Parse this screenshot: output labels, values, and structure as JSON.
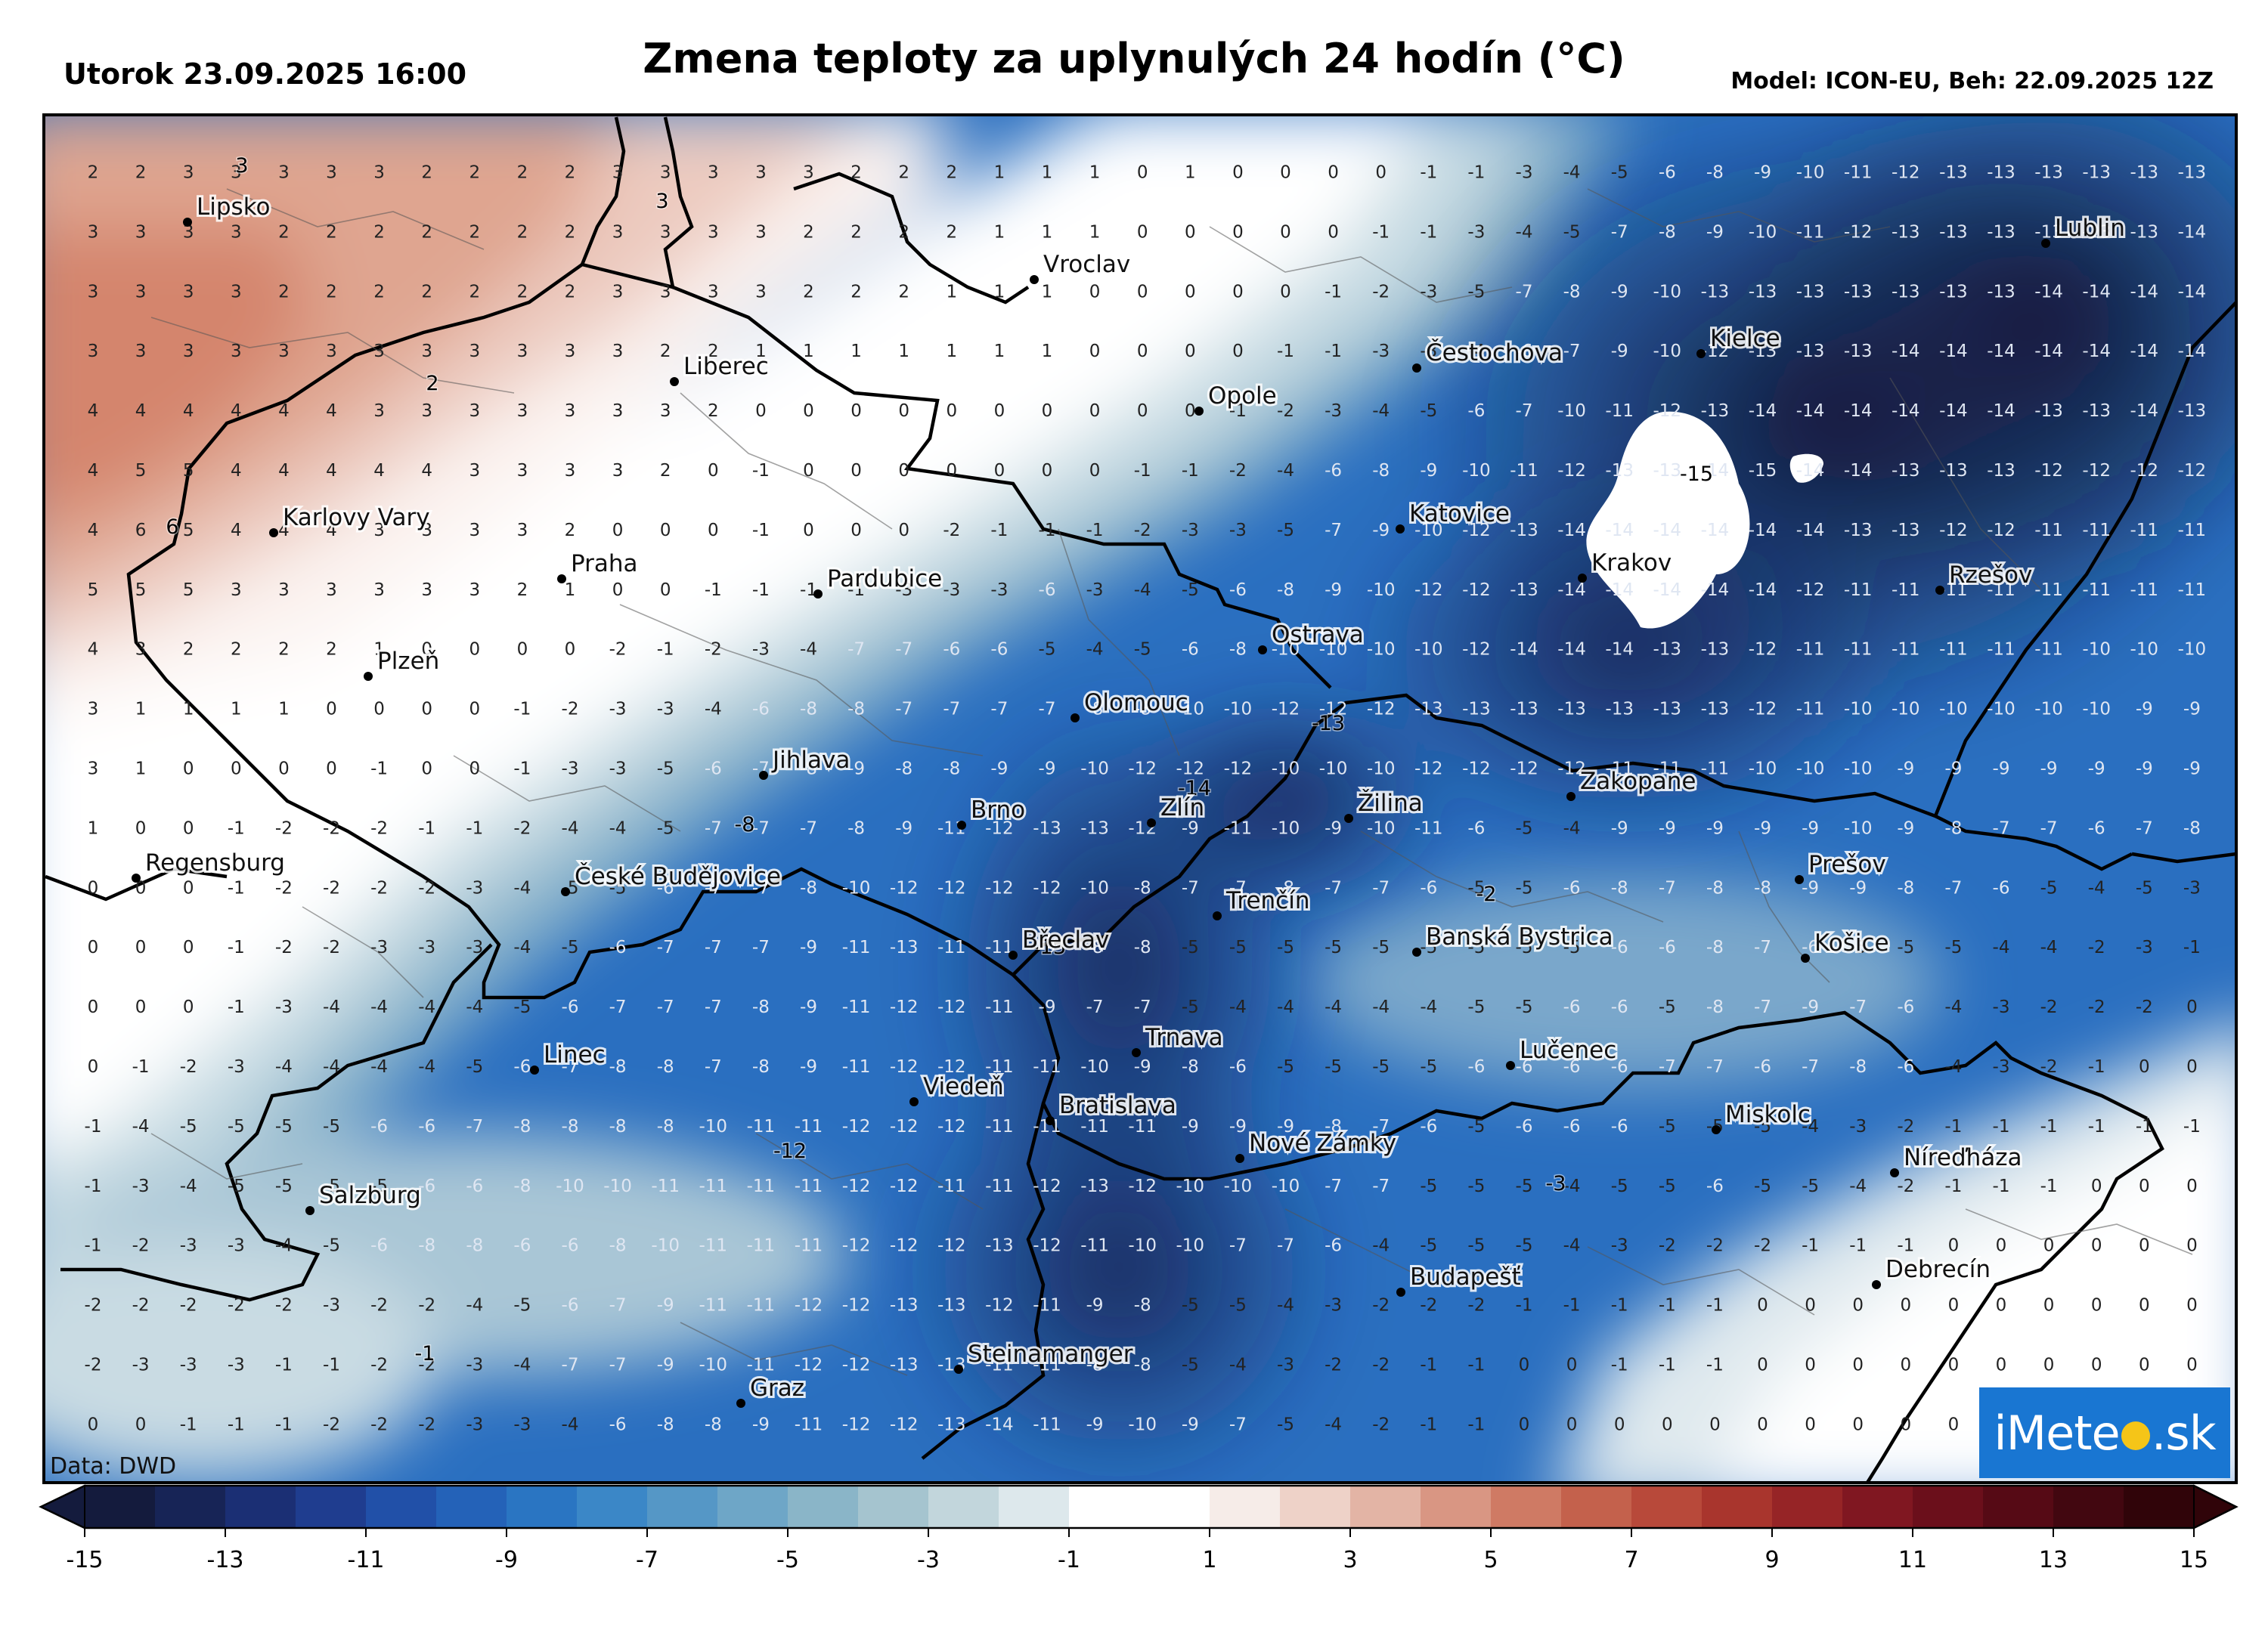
{
  "header": {
    "date_label": "Utorok 23.09.2025 16:00",
    "title": "Zmena teploty za uplynulých 24 hodín (°C)",
    "model_label": "Model: ICON-EU, Beh: 22.09.2025 12Z"
  },
  "footer": {
    "data_source": "Data: DWD"
  },
  "logo": {
    "left": "iMete",
    "right": ".sk"
  },
  "colorbar": {
    "ticks": [
      "-15",
      "-13",
      "-11",
      "-9",
      "-7",
      "-5",
      "-3",
      "-1",
      "1",
      "3",
      "5",
      "7",
      "9",
      "11",
      "13",
      "15"
    ],
    "colors": [
      "#141b3d",
      "#172456",
      "#1b2f74",
      "#1f3d8f",
      "#2150a8",
      "#2462b8",
      "#2a75c2",
      "#3b87c7",
      "#5597c6",
      "#6ea6c7",
      "#8ab5c8",
      "#a5c4cf",
      "#c2d6dc",
      "#dde8ec",
      "#ffffff",
      "#ffffff",
      "#f6ece8",
      "#eed2c8",
      "#e3b4a5",
      "#d99683",
      "#cf7a64",
      "#c4614c",
      "#b8493a",
      "#a9352d",
      "#962426",
      "#801721",
      "#6b0f1b",
      "#560a15",
      "#420710",
      "#300409"
    ]
  },
  "cities": [
    {
      "name": "Lipsko"
    },
    {
      "name": "Vroclav"
    },
    {
      "name": "Lublin"
    },
    {
      "name": "Liberec"
    },
    {
      "name": "Čestochova"
    },
    {
      "name": "Kielce"
    },
    {
      "name": "Opole"
    },
    {
      "name": "Karlovy Vary"
    },
    {
      "name": "Praha"
    },
    {
      "name": "Katovice"
    },
    {
      "name": "Krakov"
    },
    {
      "name": "Rzešov"
    },
    {
      "name": "Pardubice"
    },
    {
      "name": "Ostrava"
    },
    {
      "name": "Plzeň"
    },
    {
      "name": "Olomouc"
    },
    {
      "name": "Jihlava"
    },
    {
      "name": "Zlín"
    },
    {
      "name": "Žilina"
    },
    {
      "name": "Zakopane"
    },
    {
      "name": "Brno"
    },
    {
      "name": "Regensburg"
    },
    {
      "name": "České Budějovice"
    },
    {
      "name": "Prešov"
    },
    {
      "name": "Trenčín"
    },
    {
      "name": "Břeclav"
    },
    {
      "name": "Banská Bystrica"
    },
    {
      "name": "Košice"
    },
    {
      "name": "Trnava"
    },
    {
      "name": "Linec"
    },
    {
      "name": "Lučenec"
    },
    {
      "name": "Viedeň"
    },
    {
      "name": "Bratislava"
    },
    {
      "name": "Miskolc"
    },
    {
      "name": "Nové Zámky"
    },
    {
      "name": "Salzburg"
    },
    {
      "name": "Níreďháza"
    },
    {
      "name": "Debrecín"
    },
    {
      "name": "Budapešť"
    },
    {
      "name": "Steinamanger"
    },
    {
      "name": "Graz"
    }
  ],
  "contour_labels": [
    "3",
    "3",
    "2",
    "6",
    "-15",
    "-13",
    "-14",
    "-8",
    "-2",
    "-13",
    "-12",
    "-3",
    "-1"
  ],
  "grid_values": [
    [
      2,
      2,
      3,
      3,
      3,
      3,
      3,
      2,
      2,
      2,
      2,
      3,
      3,
      3,
      3,
      3,
      2,
      2,
      2,
      1,
      1,
      1,
      0,
      1,
      0,
      0,
      0,
      0,
      -1,
      -1,
      -3,
      -4,
      -5,
      -6,
      -8,
      -9,
      -10,
      -11,
      -12,
      -13,
      -13,
      -13,
      -13,
      -13,
      -13
    ],
    [
      3,
      3,
      3,
      3,
      2,
      2,
      2,
      2,
      2,
      2,
      2,
      3,
      3,
      3,
      3,
      2,
      2,
      2,
      2,
      1,
      1,
      1,
      0,
      0,
      0,
      0,
      0,
      -1,
      -1,
      -3,
      -4,
      -5,
      -7,
      -8,
      -9,
      -10,
      -11,
      -12,
      -13,
      -13,
      -13,
      -13,
      -13,
      -13,
      -14
    ],
    [
      3,
      3,
      3,
      3,
      2,
      2,
      2,
      2,
      2,
      2,
      2,
      3,
      3,
      3,
      3,
      2,
      2,
      2,
      1,
      1,
      1,
      0,
      0,
      0,
      0,
      0,
      -1,
      -2,
      -3,
      -5,
      -7,
      -8,
      -9,
      -10,
      -13,
      -13,
      -13,
      -13,
      -13,
      -13,
      -13,
      -14,
      -14,
      -14,
      -14
    ],
    [
      3,
      3,
      3,
      3,
      3,
      3,
      3,
      3,
      3,
      3,
      3,
      3,
      2,
      2,
      1,
      1,
      1,
      1,
      1,
      1,
      1,
      0,
      0,
      0,
      0,
      -1,
      -1,
      -3,
      -3,
      -4,
      -6,
      -7,
      -9,
      -10,
      -12,
      -13,
      -13,
      -13,
      -14,
      -14,
      -14,
      -14,
      -14,
      -14,
      -14
    ],
    [
      4,
      4,
      4,
      4,
      4,
      4,
      3,
      3,
      3,
      3,
      3,
      3,
      3,
      2,
      0,
      0,
      0,
      0,
      0,
      0,
      0,
      0,
      0,
      0,
      -1,
      -2,
      -3,
      -4,
      -5,
      -6,
      -7,
      -10,
      -11,
      -12,
      -13,
      -14,
      -14,
      -14,
      -14,
      -14,
      -14,
      -13,
      -13,
      -14,
      -13
    ],
    [
      4,
      5,
      5,
      4,
      4,
      4,
      4,
      4,
      3,
      3,
      3,
      3,
      2,
      0,
      -1,
      0,
      0,
      0,
      0,
      0,
      0,
      0,
      -1,
      -1,
      -2,
      -4,
      -6,
      -8,
      -9,
      -10,
      -11,
      -12,
      -13,
      -13,
      -14,
      -15,
      -14,
      -14,
      -13,
      -13,
      -13,
      -12,
      -12,
      -12,
      -12
    ],
    [
      4,
      6,
      5,
      4,
      4,
      4,
      3,
      3,
      3,
      3,
      2,
      0,
      0,
      0,
      -1,
      0,
      0,
      0,
      -2,
      -1,
      -1,
      -1,
      -2,
      -3,
      -3,
      -5,
      -7,
      -9,
      -10,
      -12,
      -13,
      -14,
      -14,
      -14,
      -14,
      -14,
      -14,
      -13,
      -13,
      -12,
      -12,
      -11,
      -11,
      -11,
      -11
    ],
    [
      5,
      5,
      5,
      3,
      3,
      3,
      3,
      3,
      3,
      2,
      1,
      0,
      0,
      -1,
      -1,
      -1,
      -1,
      -3,
      -3,
      -3,
      -6,
      -3,
      -4,
      -5,
      -6,
      -8,
      -9,
      -10,
      -12,
      -12,
      -13,
      -14,
      -14,
      -14,
      -14,
      -14,
      -12,
      -11,
      -11,
      -11,
      -11,
      -11,
      -11,
      -11,
      -11
    ],
    [
      4,
      3,
      2,
      2,
      2,
      2,
      1,
      0,
      0,
      0,
      0,
      -2,
      -1,
      -2,
      -3,
      -4,
      -7,
      -7,
      -6,
      -6,
      -5,
      -4,
      -5,
      -6,
      -8,
      -10,
      -10,
      -10,
      -10,
      -12,
      -14,
      -14,
      -14,
      -13,
      -13,
      -12,
      -11,
      -11,
      -11,
      -11,
      -11,
      -11,
      -10,
      -10,
      -10
    ],
    [
      3,
      1,
      1,
      1,
      1,
      0,
      0,
      0,
      0,
      -1,
      -2,
      -3,
      -3,
      -4,
      -6,
      -8,
      -8,
      -7,
      -7,
      -7,
      -7,
      -8,
      -8,
      -10,
      -10,
      -12,
      -12,
      -12,
      -13,
      -13,
      -13,
      -13,
      -13,
      -13,
      -13,
      -12,
      -11,
      -10,
      -10,
      -10,
      -10,
      -10,
      -10,
      -9,
      -9
    ],
    [
      3,
      1,
      0,
      0,
      0,
      0,
      -1,
      0,
      0,
      -1,
      -3,
      -3,
      -5,
      -6,
      -7,
      -8,
      -9,
      -8,
      -8,
      -9,
      -9,
      -10,
      -12,
      -12,
      -12,
      -10,
      -10,
      -10,
      -12,
      -12,
      -12,
      -12,
      -11,
      -11,
      -11,
      -10,
      -10,
      -10,
      -9,
      -9,
      -9,
      -9,
      -9,
      -9,
      -9
    ],
    [
      1,
      0,
      0,
      -1,
      -2,
      -2,
      -2,
      -1,
      -1,
      -2,
      -4,
      -4,
      -5,
      -7,
      -7,
      -7,
      -8,
      -9,
      -11,
      -12,
      -13,
      -13,
      -12,
      -9,
      -11,
      -10,
      -9,
      -10,
      -11,
      -6,
      -5,
      -4,
      -9,
      -9,
      -9,
      -9,
      -9,
      -10,
      -9,
      -8,
      -7,
      -7,
      -6,
      -7,
      -8
    ],
    [
      0,
      0,
      0,
      -1,
      -2,
      -2,
      -2,
      -2,
      -3,
      -4,
      -5,
      -5,
      -6,
      -7,
      -7,
      -8,
      -10,
      -12,
      -12,
      -12,
      -12,
      -10,
      -8,
      -7,
      -7,
      -8,
      -7,
      -7,
      -6,
      -5,
      -5,
      -6,
      -8,
      -7,
      -8,
      -8,
      -9,
      -9,
      -8,
      -7,
      -6,
      -5,
      -4,
      -5,
      -3
    ],
    [
      0,
      0,
      0,
      -1,
      -2,
      -2,
      -3,
      -3,
      -3,
      -4,
      -5,
      -6,
      -7,
      -7,
      -7,
      -9,
      -11,
      -13,
      -11,
      -11,
      -9,
      -8,
      -8,
      -5,
      -5,
      -5,
      -5,
      -5,
      -5,
      -5,
      -5,
      -5,
      -6,
      -6,
      -8,
      -7,
      -6,
      -5,
      -5,
      -5,
      -4,
      -4,
      -2,
      -3,
      -1
    ],
    [
      0,
      0,
      0,
      -1,
      -3,
      -4,
      -4,
      -4,
      -4,
      -5,
      -6,
      -7,
      -7,
      -7,
      -8,
      -9,
      -11,
      -12,
      -12,
      -11,
      -9,
      -7,
      -7,
      -5,
      -4,
      -4,
      -4,
      -4,
      -4,
      -5,
      -5,
      -6,
      -6,
      -5,
      -8,
      -7,
      -9,
      -7,
      -6,
      -4,
      -3,
      -2,
      -2,
      -2,
      0
    ],
    [
      0,
      -1,
      -2,
      -3,
      -4,
      -4,
      -4,
      -4,
      -5,
      -6,
      -7,
      -8,
      -8,
      -7,
      -8,
      -9,
      -11,
      -12,
      -12,
      -11,
      -11,
      -10,
      -9,
      -8,
      -6,
      -5,
      -5,
      -5,
      -5,
      -6,
      -6,
      -6,
      -6,
      -7,
      -7,
      -6,
      -7,
      -8,
      -6,
      -4,
      -3,
      -2,
      -1,
      0,
      0
    ],
    [
      -1,
      -4,
      -5,
      -5,
      -5,
      -5,
      -6,
      -6,
      -7,
      -8,
      -8,
      -8,
      -8,
      -10,
      -11,
      -11,
      -12,
      -12,
      -12,
      -11,
      -11,
      -11,
      -11,
      -9,
      -9,
      -9,
      -8,
      -7,
      -6,
      -5,
      -6,
      -6,
      -6,
      -5,
      -5,
      -5,
      -4,
      -3,
      -2,
      -1,
      -1,
      -1,
      -1,
      -1,
      -1
    ],
    [
      -1,
      -3,
      -4,
      -5,
      -5,
      -5,
      -5,
      -6,
      -6,
      -8,
      -10,
      -10,
      -11,
      -11,
      -11,
      -11,
      -12,
      -12,
      -11,
      -11,
      -12,
      -13,
      -12,
      -10,
      -10,
      -10,
      -7,
      -7,
      -5,
      -5,
      -5,
      -4,
      -5,
      -5,
      -6,
      -5,
      -5,
      -4,
      -2,
      -1,
      -1,
      -1,
      0,
      0,
      0
    ],
    [
      -1,
      -2,
      -3,
      -3,
      -4,
      -5,
      -6,
      -8,
      -8,
      -6,
      -6,
      -8,
      -10,
      -11,
      -11,
      -11,
      -12,
      -12,
      -12,
      -13,
      -12,
      -11,
      -10,
      -10,
      -7,
      -7,
      -6,
      -4,
      -5,
      -5,
      -5,
      -4,
      -3,
      -2,
      -2,
      -2,
      -1,
      -1,
      -1,
      0,
      0,
      0,
      0,
      0,
      0
    ],
    [
      -2,
      -2,
      -2,
      -2,
      -2,
      -3,
      -2,
      -2,
      -4,
      -5,
      -6,
      -7,
      -9,
      -11,
      -11,
      -12,
      -12,
      -13,
      -13,
      -12,
      -11,
      -9,
      -8,
      -5,
      -5,
      -4,
      -3,
      -2,
      -2,
      -2,
      -1,
      -1,
      -1,
      -1,
      -1,
      0,
      0,
      0,
      0,
      0,
      0,
      0,
      0,
      0,
      0
    ],
    [
      -2,
      -3,
      -3,
      -3,
      -1,
      -1,
      -2,
      -2,
      -3,
      -4,
      -7,
      -7,
      -9,
      -10,
      -11,
      -12,
      -12,
      -13,
      -13,
      -11,
      -11,
      -8,
      -8,
      -5,
      -4,
      -3,
      -2,
      -2,
      -1,
      -1,
      0,
      0,
      -1,
      -1,
      -1,
      0,
      0,
      0,
      0,
      0,
      0,
      0,
      0,
      0,
      0
    ],
    [
      0,
      0,
      -1,
      -1,
      -1,
      -2,
      -2,
      -2,
      -3,
      -3,
      -4,
      -6,
      -8,
      -8,
      -9,
      -11,
      -12,
      -12,
      -13,
      -14,
      -11,
      -9,
      -10,
      -9,
      -7,
      -5,
      -4,
      -2,
      -1,
      -1,
      0,
      0,
      0,
      0,
      0,
      0,
      0,
      0,
      0,
      0,
      0,
      0,
      0,
      0,
      0
    ]
  ]
}
